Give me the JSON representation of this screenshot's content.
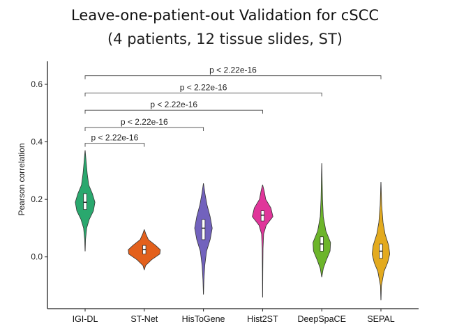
{
  "chart_data": {
    "type": "violin",
    "title": "Leave-one-patient-out Validation for cSCC",
    "subtitle": "(4 patients, 12 tissue slides, ST)",
    "xlabel": "",
    "ylabel": "Pearson correlation",
    "ylim": [
      -0.18,
      0.68
    ],
    "yticks": [
      0.0,
      0.2,
      0.4,
      0.6
    ],
    "ytick_labels": [
      "0.0",
      "0.2",
      "0.4",
      "0.6"
    ],
    "grid": false,
    "categories": [
      "IGI-DL",
      "ST-Net",
      "HisToGene",
      "Hist2ST",
      "DeepSpaCE",
      "SEPAL"
    ],
    "series": [
      {
        "color": "#2aa86e",
        "min": 0.02,
        "max": 0.37,
        "q1": 0.165,
        "median": 0.19,
        "q3": 0.22,
        "profile": [
          [
            0.02,
            0.002
          ],
          [
            0.06,
            0.008
          ],
          [
            0.1,
            0.03
          ],
          [
            0.13,
            0.08
          ],
          [
            0.16,
            0.16
          ],
          [
            0.19,
            0.19
          ],
          [
            0.22,
            0.14
          ],
          [
            0.25,
            0.07
          ],
          [
            0.29,
            0.04
          ],
          [
            0.33,
            0.02
          ],
          [
            0.37,
            0.002
          ]
        ]
      },
      {
        "color": "#e3601c",
        "min": -0.045,
        "max": 0.095,
        "q1": 0.01,
        "median": 0.025,
        "q3": 0.04,
        "profile": [
          [
            -0.045,
            0.002
          ],
          [
            -0.03,
            0.025
          ],
          [
            -0.01,
            0.14
          ],
          [
            0.01,
            0.3
          ],
          [
            0.025,
            0.31
          ],
          [
            0.04,
            0.22
          ],
          [
            0.06,
            0.08
          ],
          [
            0.08,
            0.03
          ],
          [
            0.095,
            0.002
          ]
        ]
      },
      {
        "color": "#7262bd",
        "min": -0.13,
        "max": 0.255,
        "q1": 0.06,
        "median": 0.1,
        "q3": 0.13,
        "profile": [
          [
            -0.13,
            0.002
          ],
          [
            -0.08,
            0.01
          ],
          [
            -0.03,
            0.025
          ],
          [
            0.02,
            0.06
          ],
          [
            0.06,
            0.13
          ],
          [
            0.1,
            0.17
          ],
          [
            0.14,
            0.13
          ],
          [
            0.18,
            0.07
          ],
          [
            0.22,
            0.03
          ],
          [
            0.255,
            0.002
          ]
        ]
      },
      {
        "color": "#e0359a",
        "min": -0.14,
        "max": 0.25,
        "q1": 0.125,
        "median": 0.145,
        "q3": 0.16,
        "profile": [
          [
            -0.14,
            0.002
          ],
          [
            -0.05,
            0.004
          ],
          [
            0.03,
            0.008
          ],
          [
            0.08,
            0.02
          ],
          [
            0.11,
            0.07
          ],
          [
            0.14,
            0.2
          ],
          [
            0.17,
            0.16
          ],
          [
            0.2,
            0.06
          ],
          [
            0.23,
            0.03
          ],
          [
            0.25,
            0.002
          ]
        ]
      },
      {
        "color": "#6cb52a",
        "min": -0.07,
        "max": 0.325,
        "q1": 0.02,
        "median": 0.045,
        "q3": 0.07,
        "profile": [
          [
            -0.07,
            0.002
          ],
          [
            -0.04,
            0.03
          ],
          [
            -0.01,
            0.09
          ],
          [
            0.02,
            0.16
          ],
          [
            0.05,
            0.17
          ],
          [
            0.09,
            0.08
          ],
          [
            0.14,
            0.03
          ],
          [
            0.2,
            0.015
          ],
          [
            0.26,
            0.008
          ],
          [
            0.325,
            0.002
          ]
        ]
      },
      {
        "color": "#e3aa1e",
        "min": -0.15,
        "max": 0.26,
        "q1": -0.005,
        "median": 0.02,
        "q3": 0.045,
        "profile": [
          [
            -0.15,
            0.002
          ],
          [
            -0.1,
            0.01
          ],
          [
            -0.05,
            0.06
          ],
          [
            -0.02,
            0.13
          ],
          [
            0.01,
            0.17
          ],
          [
            0.04,
            0.15
          ],
          [
            0.08,
            0.08
          ],
          [
            0.12,
            0.04
          ],
          [
            0.18,
            0.015
          ],
          [
            0.26,
            0.002
          ]
        ]
      }
    ],
    "annotations": [
      {
        "from": "IGI-DL",
        "to": "ST-Net",
        "text": "p < 2.22e-16",
        "y": 0.395
      },
      {
        "from": "IGI-DL",
        "to": "HisToGene",
        "text": "p < 2.22e-16",
        "y": 0.45
      },
      {
        "from": "IGI-DL",
        "to": "Hist2ST",
        "text": "p < 2.22e-16",
        "y": 0.51
      },
      {
        "from": "IGI-DL",
        "to": "DeepSpaCE",
        "text": "p < 2.22e-16",
        "y": 0.57
      },
      {
        "from": "IGI-DL",
        "to": "SEPAL",
        "text": "p < 2.22e-16",
        "y": 0.63
      }
    ]
  }
}
